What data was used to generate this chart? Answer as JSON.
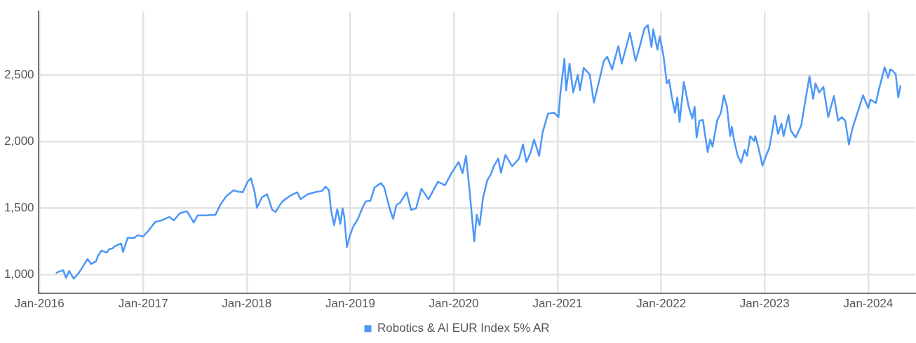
{
  "chart_data": {
    "type": "line",
    "legend": "bottom",
    "grid": true,
    "marker": "none",
    "line_style": "solid",
    "xlim": [
      "2015-12-28",
      "2024-06-15"
    ],
    "xticks": [
      {
        "value": "2016-01",
        "label": "Jan-2016"
      },
      {
        "value": "2017-01",
        "label": "Jan-2017"
      },
      {
        "value": "2018-01",
        "label": "Jan-2018"
      },
      {
        "value": "2019-01",
        "label": "Jan-2019"
      },
      {
        "value": "2020-01",
        "label": "Jan-2020"
      },
      {
        "value": "2021-01",
        "label": "Jan-2021"
      },
      {
        "value": "2022-01",
        "label": "Jan-2022"
      },
      {
        "value": "2023-01",
        "label": "Jan-2023"
      },
      {
        "value": "2024-01",
        "label": "Jan-2024"
      }
    ],
    "ylim": [
      860,
      2980
    ],
    "yticks": [
      {
        "value": 1000,
        "label": "1,000"
      },
      {
        "value": 1500,
        "label": "1,500"
      },
      {
        "value": 2000,
        "label": "2,000"
      },
      {
        "value": 2500,
        "label": "2,500"
      }
    ],
    "series": [
      {
        "name": "Robotics & AI EUR Index 5% AR",
        "color": "#4d97f6",
        "x": [
          "2016-02-28",
          "2016-03-25",
          "2016-04-04",
          "2016-04-15",
          "2016-05-01",
          "2016-05-19",
          "2016-05-28",
          "2016-06-19",
          "2016-07-01",
          "2016-07-19",
          "2016-07-25",
          "2016-08-07",
          "2016-08-25",
          "2016-09-03",
          "2016-09-15",
          "2016-09-22",
          "2016-10-15",
          "2016-10-22",
          "2016-11-07",
          "2016-12-01",
          "2016-12-13",
          "2017-01-01",
          "2017-01-19",
          "2017-02-13",
          "2017-03-07",
          "2017-04-03",
          "2017-04-19",
          "2017-05-10",
          "2017-06-04",
          "2017-06-28",
          "2017-07-12",
          "2017-08-07",
          "2017-09-13",
          "2017-10-01",
          "2017-10-22",
          "2017-11-16",
          "2017-11-28",
          "2017-12-18",
          "2018-01-04",
          "2018-01-16",
          "2018-01-29",
          "2018-02-06",
          "2018-02-24",
          "2018-03-14",
          "2018-04-01",
          "2018-04-13",
          "2018-04-25",
          "2018-05-07",
          "2018-06-03",
          "2018-06-28",
          "2018-07-10",
          "2018-08-04",
          "2018-08-28",
          "2018-09-24",
          "2018-10-06",
          "2018-10-18",
          "2018-10-25",
          "2018-11-05",
          "2018-11-16",
          "2018-11-27",
          "2018-12-05",
          "2018-12-11",
          "2018-12-20",
          "2018-12-28",
          "2019-01-10",
          "2019-01-28",
          "2019-02-13",
          "2019-02-25",
          "2019-03-13",
          "2019-03-28",
          "2019-04-19",
          "2019-05-01",
          "2019-05-19",
          "2019-06-01",
          "2019-06-13",
          "2019-06-25",
          "2019-07-19",
          "2019-08-03",
          "2019-08-21",
          "2019-09-09",
          "2019-10-04",
          "2019-11-06",
          "2019-12-01",
          "2019-12-25",
          "2020-01-18",
          "2020-02-01",
          "2020-02-13",
          "2020-02-25",
          "2020-03-13",
          "2020-03-22",
          "2020-04-01",
          "2020-04-13",
          "2020-04-28",
          "2020-05-10",
          "2020-05-22",
          "2020-06-06",
          "2020-06-15",
          "2020-07-01",
          "2020-07-25",
          "2020-08-18",
          "2020-09-01",
          "2020-09-13",
          "2020-09-28",
          "2020-10-10",
          "2020-10-28",
          "2020-11-09",
          "2020-11-28",
          "2020-12-20",
          "2021-01-04",
          "2021-01-10",
          "2021-01-25",
          "2021-01-31",
          "2021-02-12",
          "2021-02-25",
          "2021-03-13",
          "2021-03-21",
          "2021-04-03",
          "2021-04-24",
          "2021-05-09",
          "2021-05-27",
          "2021-06-13",
          "2021-06-25",
          "2021-07-12",
          "2021-08-03",
          "2021-08-15",
          "2021-09-13",
          "2021-10-03",
          "2021-10-16",
          "2021-11-03",
          "2021-11-15",
          "2021-11-28",
          "2021-12-04",
          "2021-12-19",
          "2021-12-27",
          "2022-01-09",
          "2022-01-21",
          "2022-01-29",
          "2022-02-07",
          "2022-02-19",
          "2022-02-27",
          "2022-03-07",
          "2022-03-22",
          "2022-04-08",
          "2022-04-21",
          "2022-04-29",
          "2022-05-06",
          "2022-05-16",
          "2022-05-28",
          "2022-06-14",
          "2022-06-23",
          "2022-07-01",
          "2022-07-18",
          "2022-07-31",
          "2022-08-10",
          "2022-08-21",
          "2022-09-01",
          "2022-09-07",
          "2022-09-16",
          "2022-09-28",
          "2022-10-10",
          "2022-10-22",
          "2022-10-31",
          "2022-11-11",
          "2022-11-25",
          "2022-11-29",
          "2022-12-11",
          "2022-12-24",
          "2023-01-06",
          "2023-01-17",
          "2023-01-27",
          "2023-02-06",
          "2023-02-17",
          "2023-03-01",
          "2023-03-09",
          "2023-03-26",
          "2023-04-03",
          "2023-04-20",
          "2023-05-10",
          "2023-05-22",
          "2023-06-08",
          "2023-06-21",
          "2023-06-29",
          "2023-07-12",
          "2023-07-27",
          "2023-08-13",
          "2023-09-02",
          "2023-09-17",
          "2023-09-30",
          "2023-10-12",
          "2023-10-25",
          "2023-11-07",
          "2023-11-28",
          "2023-12-14",
          "2024-01-01",
          "2024-01-09",
          "2024-01-28",
          "2024-02-07",
          "2024-02-28",
          "2024-03-11",
          "2024-03-19",
          "2024-03-27",
          "2024-04-07",
          "2024-04-16",
          "2024-04-24"
        ],
        "values": [
          1011,
          1032,
          974,
          1026,
          968,
          1011,
          1042,
          1116,
          1079,
          1100,
          1137,
          1180,
          1164,
          1190,
          1196,
          1211,
          1233,
          1169,
          1275,
          1275,
          1296,
          1285,
          1328,
          1396,
          1407,
          1433,
          1407,
          1460,
          1476,
          1391,
          1444,
          1444,
          1449,
          1529,
          1592,
          1634,
          1624,
          1618,
          1698,
          1724,
          1618,
          1502,
          1581,
          1603,
          1486,
          1470,
          1513,
          1550,
          1592,
          1618,
          1566,
          1603,
          1618,
          1629,
          1661,
          1634,
          1486,
          1370,
          1491,
          1381,
          1497,
          1433,
          1206,
          1275,
          1354,
          1418,
          1502,
          1550,
          1555,
          1655,
          1687,
          1655,
          1502,
          1418,
          1523,
          1539,
          1618,
          1486,
          1497,
          1645,
          1566,
          1698,
          1671,
          1766,
          1846,
          1761,
          1893,
          1645,
          1248,
          1449,
          1370,
          1576,
          1708,
          1751,
          1819,
          1872,
          1766,
          1899,
          1814,
          1872,
          1978,
          1846,
          1920,
          2015,
          1893,
          2068,
          2210,
          2216,
          2184,
          2348,
          2623,
          2385,
          2586,
          2369,
          2501,
          2385,
          2554,
          2506,
          2295,
          2453,
          2607,
          2638,
          2543,
          2718,
          2586,
          2818,
          2607,
          2702,
          2850,
          2876,
          2712,
          2845,
          2691,
          2792,
          2649,
          2438,
          2464,
          2342,
          2216,
          2332,
          2147,
          2448,
          2263,
          2173,
          2263,
          2031,
          2157,
          2163,
          1920,
          2015,
          1962,
          2163,
          2216,
          2348,
          2263,
          2041,
          2110,
          1999,
          1893,
          1840,
          1936,
          1893,
          2041,
          2004,
          2041,
          1946,
          1819,
          1893,
          1951,
          2068,
          2195,
          2057,
          2136,
          2041,
          2200,
          2083,
          2031,
          2121,
          2279,
          2490,
          2321,
          2438,
          2369,
          2411,
          2184,
          2342,
          2157,
          2184,
          2157,
          1978,
          2105,
          2242,
          2348,
          2253,
          2316,
          2290,
          2385,
          2559,
          2480,
          2543,
          2533,
          2506,
          2332,
          2422
        ]
      }
    ]
  }
}
